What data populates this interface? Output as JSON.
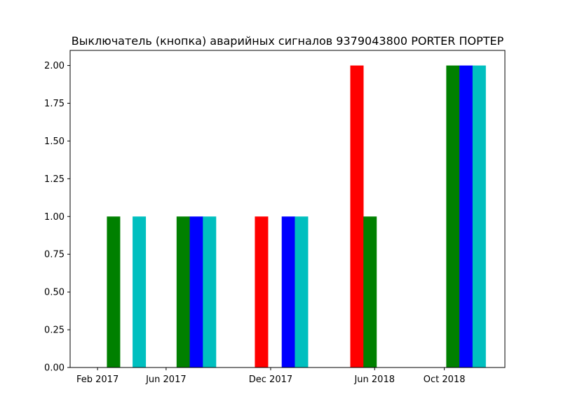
{
  "chart_data": {
    "type": "bar",
    "title": "Выключатель (кнопка) аварийных сигналов 9379043800 PORTER ПОРТЕР",
    "xlabel": "",
    "ylabel": "",
    "ylim": [
      0,
      2.1
    ],
    "xlim": [
      "2016-12-15",
      "2019-01-15"
    ],
    "yticks": [
      {
        "value": 0,
        "label": "0.00"
      },
      {
        "value": 0.25,
        "label": "0.25"
      },
      {
        "value": 0.5,
        "label": "0.50"
      },
      {
        "value": 0.75,
        "label": "0.75"
      },
      {
        "value": 1.0,
        "label": "1.00"
      },
      {
        "value": 1.25,
        "label": "1.25"
      },
      {
        "value": 1.5,
        "label": "1.50"
      },
      {
        "value": 1.75,
        "label": "1.75"
      },
      {
        "value": 2.0,
        "label": "2.00"
      }
    ],
    "xticks": [
      {
        "date": "2017-02-01",
        "label": "Feb 2017"
      },
      {
        "date": "2017-06-01",
        "label": "Jun 2017"
      },
      {
        "date": "2017-12-01",
        "label": "Dec 2017"
      },
      {
        "date": "2018-06-01",
        "label": "Jun 2018"
      },
      {
        "date": "2018-10-01",
        "label": "Oct 2018"
      }
    ],
    "bars": [
      {
        "date": "2017-03-01",
        "value": 1,
        "color": "#008000"
      },
      {
        "date": "2017-04-15",
        "value": 1,
        "color": "#00bfbf"
      },
      {
        "date": "2017-07-01",
        "value": 1,
        "color": "#008000"
      },
      {
        "date": "2017-07-24",
        "value": 1,
        "color": "#0000ff"
      },
      {
        "date": "2017-08-16",
        "value": 1,
        "color": "#00bfbf"
      },
      {
        "date": "2017-11-15",
        "value": 1,
        "color": "#ff0000"
      },
      {
        "date": "2018-01-01",
        "value": 1,
        "color": "#0000ff"
      },
      {
        "date": "2018-01-24",
        "value": 1,
        "color": "#00bfbf"
      },
      {
        "date": "2018-05-01",
        "value": 2,
        "color": "#ff0000"
      },
      {
        "date": "2018-05-24",
        "value": 1,
        "color": "#008000"
      },
      {
        "date": "2018-10-16",
        "value": 2,
        "color": "#008000"
      },
      {
        "date": "2018-11-08",
        "value": 2,
        "color": "#0000ff"
      },
      {
        "date": "2018-12-01",
        "value": 2,
        "color": "#00bfbf"
      }
    ]
  }
}
